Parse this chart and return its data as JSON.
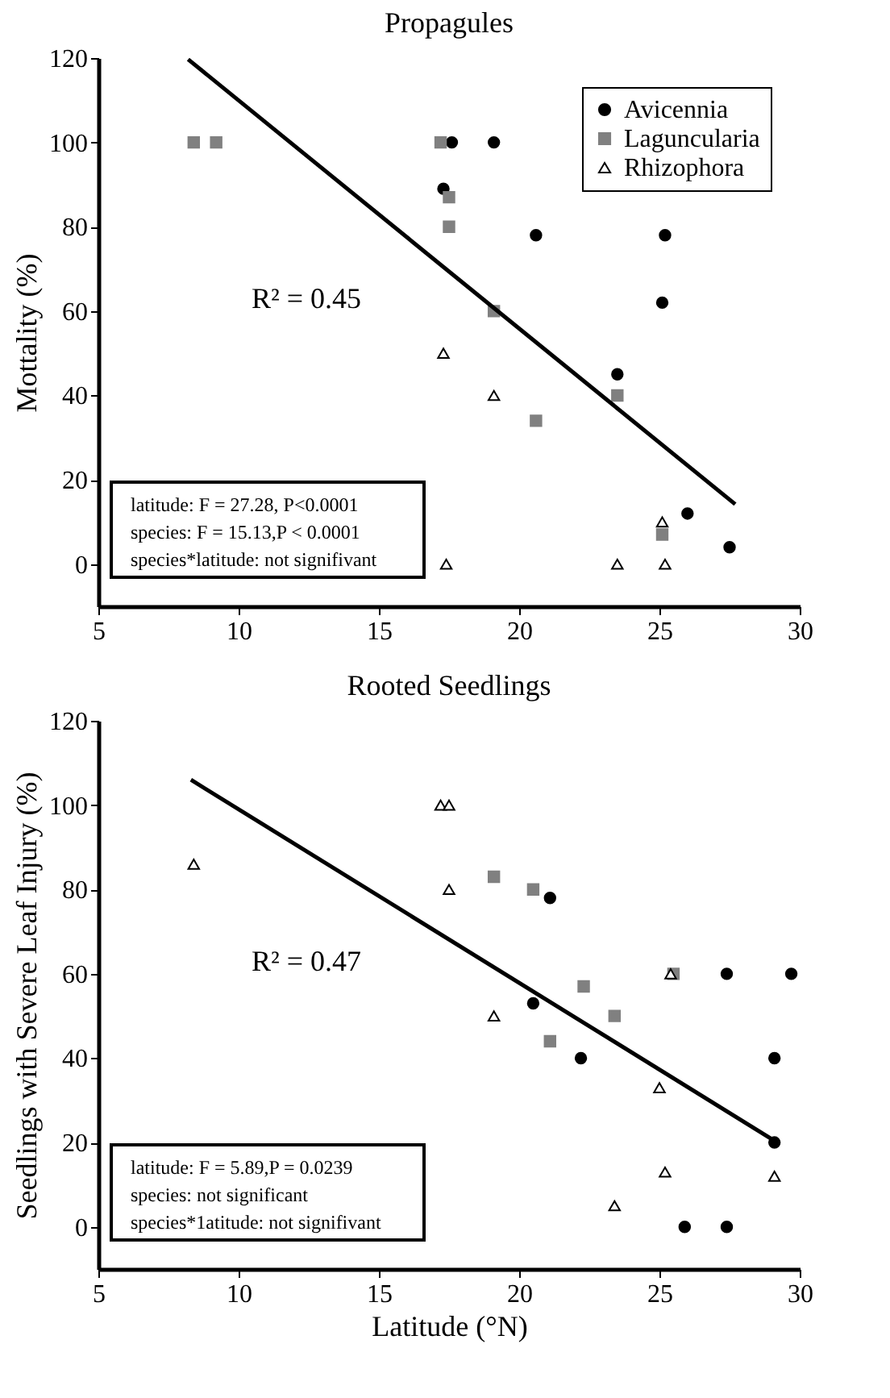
{
  "chart_data": [
    {
      "type": "scatter",
      "title": "Propagules",
      "ylabel": "Mottality (%)",
      "xlim": [
        5,
        30
      ],
      "xticks": [
        5,
        10,
        15,
        20,
        25,
        30
      ],
      "ylim": [
        -10,
        120
      ],
      "yticks": [
        0,
        20,
        40,
        60,
        80,
        100,
        120
      ],
      "grid": false,
      "legend": "top right",
      "series": [
        {
          "name": "Avicennia",
          "color": "#000000",
          "marker": "circle",
          "x": [
            17.6,
            19.1,
            17.3,
            20.6,
            25.2,
            25.1,
            23.5,
            26.0,
            27.5
          ],
          "values": [
            100,
            100,
            89,
            78,
            78,
            62,
            45,
            12,
            4
          ]
        },
        {
          "name": "Laguncularia",
          "color": "#808080",
          "marker": "square",
          "x": [
            8.4,
            9.2,
            17.2,
            17.5,
            17.5,
            19.1,
            20.6,
            23.5,
            25.1
          ],
          "values": [
            100,
            100,
            100,
            87,
            80,
            60,
            34,
            40,
            7
          ]
        },
        {
          "name": "Rhizophora",
          "color": "#000000",
          "marker": "triangle",
          "x": [
            17.3,
            19.1,
            17.4,
            23.5,
            25.2,
            25.1
          ],
          "values": [
            50,
            40,
            0,
            0,
            0,
            10
          ]
        },
        {
          "type": "line",
          "color": "#000000",
          "x": [
            8.2,
            27.7
          ],
          "values": [
            119.7,
            14.2
          ]
        }
      ],
      "annotations": [
        "R² = 0.45",
        "latitude: F = 27.28, P<0.0001",
        "species: F = 15.13,P < 0.0001",
        "species*latitude: not signifivant"
      ]
    },
    {
      "type": "scatter",
      "title": "Rooted Seedlings",
      "xlabel": "Latitude (°N)",
      "ylabel": "Seedlings with Severe Leaf  Injury (%)",
      "xlim": [
        5,
        30
      ],
      "xticks": [
        5,
        10,
        15,
        20,
        25,
        30
      ],
      "ylim": [
        -10,
        120
      ],
      "yticks": [
        0,
        20,
        40,
        60,
        80,
        100,
        120
      ],
      "grid": false,
      "legend": false,
      "series": [
        {
          "name": "Avicennia",
          "color": "#000000",
          "marker": "circle",
          "x": [
            21.1,
            20.5,
            27.4,
            29.7,
            22.2,
            29.1,
            29.1,
            25.9,
            27.4
          ],
          "values": [
            78,
            53,
            60,
            60,
            40,
            40,
            20,
            0,
            0
          ]
        },
        {
          "name": "Laguncularia",
          "color": "#808080",
          "marker": "square",
          "x": [
            19.1,
            20.5,
            22.3,
            23.4,
            21.1,
            25.5
          ],
          "values": [
            83,
            80,
            57,
            50,
            44,
            60
          ]
        },
        {
          "name": "Rhizophora",
          "color": "#000000",
          "marker": "triangle",
          "x": [
            8.4,
            17.2,
            17.5,
            17.5,
            19.1,
            25.4,
            25.0,
            25.2,
            23.4,
            29.1
          ],
          "values": [
            86,
            100,
            100,
            80,
            50,
            60,
            33,
            13,
            5,
            12
          ]
        },
        {
          "type": "line",
          "color": "#000000",
          "x": [
            8.3,
            29.2
          ],
          "values": [
            106,
            20
          ]
        }
      ],
      "annotations": [
        "R² = 0.47",
        "latitude: F = 5.89,P = 0.0239",
        "species: not significant",
        "species*1atitude: not signifivant"
      ]
    }
  ]
}
